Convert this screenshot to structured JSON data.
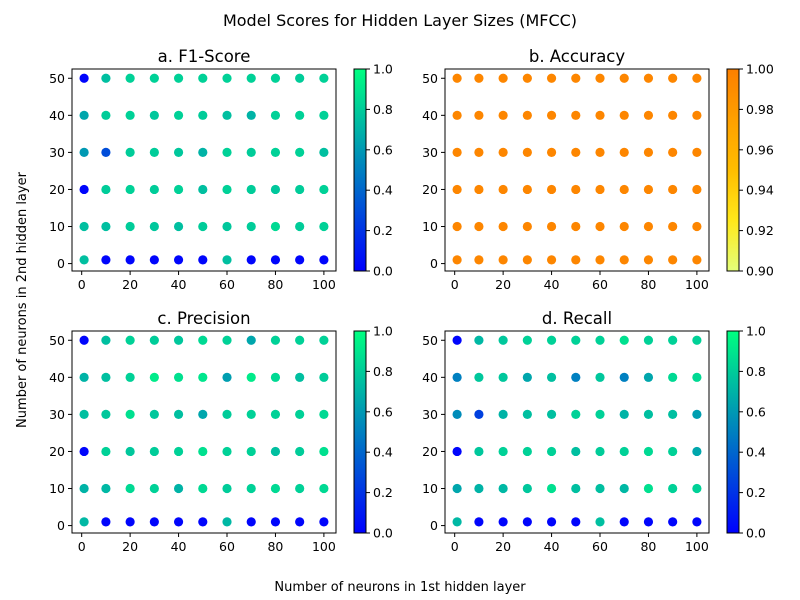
{
  "title": "Model Scores for Hidden Layer Sizes (MFCC)",
  "xlabel": "Number of neurons in 1st hidden layer",
  "ylabel": "Number of neurons in 2nd hidden layer",
  "chart_data": [
    {
      "type": "scatter",
      "title": "a. F1-Score",
      "colormap": "winter",
      "colormap_colors": [
        "#0000ff",
        "#00ff80"
      ],
      "clim": [
        0.0,
        1.0
      ],
      "colorbar_ticks": [
        0.0,
        0.2,
        0.4,
        0.6,
        0.8,
        1.0
      ],
      "x": [
        1,
        10,
        20,
        30,
        40,
        50,
        60,
        70,
        80,
        90,
        100
      ],
      "y": [
        1,
        10,
        20,
        30,
        40,
        50
      ],
      "xticks": [
        0,
        20,
        40,
        60,
        80,
        100
      ],
      "yticks": [
        0,
        10,
        20,
        30,
        40,
        50
      ],
      "xlim": [
        -4,
        105
      ],
      "ylim": [
        -2,
        52.5
      ],
      "grid": false,
      "values": [
        [
          0.75,
          0.02,
          0.02,
          0.02,
          0.02,
          0.02,
          0.75,
          0.02,
          0.02,
          0.02,
          0.02
        ],
        [
          0.75,
          0.75,
          0.8,
          0.78,
          0.75,
          0.8,
          0.78,
          0.8,
          0.85,
          0.8,
          0.82
        ],
        [
          0.02,
          0.8,
          0.82,
          0.8,
          0.82,
          0.75,
          0.82,
          0.8,
          0.78,
          0.8,
          0.82
        ],
        [
          0.6,
          0.3,
          0.8,
          0.8,
          0.78,
          0.7,
          0.82,
          0.8,
          0.82,
          0.82,
          0.75
        ],
        [
          0.65,
          0.8,
          0.82,
          0.78,
          0.82,
          0.8,
          0.75,
          0.7,
          0.82,
          0.82,
          0.82
        ],
        [
          0.02,
          0.75,
          0.82,
          0.82,
          0.82,
          0.82,
          0.82,
          0.82,
          0.82,
          0.8,
          0.82
        ]
      ]
    },
    {
      "type": "scatter",
      "title": "b. Accuracy",
      "colormap": "Wistia",
      "colormap_colors": [
        "#e4ff7a",
        "#ffe81a",
        "#ffbd00",
        "#ffa000",
        "#fc7f00"
      ],
      "clim": [
        0.9,
        1.0
      ],
      "colorbar_ticks": [
        0.9,
        0.92,
        0.94,
        0.96,
        0.98,
        1.0
      ],
      "x": [
        1,
        10,
        20,
        30,
        40,
        50,
        60,
        70,
        80,
        90,
        100
      ],
      "y": [
        1,
        10,
        20,
        30,
        40,
        50
      ],
      "xticks": [
        0,
        20,
        40,
        60,
        80,
        100
      ],
      "yticks": [
        0,
        10,
        20,
        30,
        40,
        50
      ],
      "xlim": [
        -4,
        105
      ],
      "ylim": [
        -2,
        52.5
      ],
      "grid": false,
      "values": [
        [
          0.995,
          0.995,
          0.995,
          0.995,
          0.995,
          0.995,
          0.995,
          0.995,
          0.995,
          0.995,
          0.995
        ],
        [
          0.995,
          0.995,
          0.995,
          0.995,
          0.995,
          0.995,
          0.995,
          0.995,
          0.995,
          0.995,
          0.995
        ],
        [
          0.995,
          0.995,
          0.995,
          0.995,
          0.995,
          0.995,
          0.995,
          0.995,
          0.995,
          0.995,
          0.995
        ],
        [
          0.995,
          0.995,
          0.995,
          0.995,
          0.995,
          0.995,
          0.995,
          0.995,
          0.995,
          0.995,
          0.995
        ],
        [
          0.995,
          0.995,
          0.995,
          0.995,
          0.995,
          0.995,
          0.995,
          0.995,
          0.995,
          0.995,
          0.995
        ],
        [
          0.995,
          0.995,
          0.995,
          0.995,
          0.995,
          0.995,
          0.995,
          0.995,
          0.995,
          0.995,
          0.995
        ]
      ]
    },
    {
      "type": "scatter",
      "title": "c. Precision",
      "colormap": "winter",
      "colormap_colors": [
        "#0000ff",
        "#00ff80"
      ],
      "clim": [
        0.0,
        1.0
      ],
      "colorbar_ticks": [
        0.0,
        0.2,
        0.4,
        0.6,
        0.8,
        1.0
      ],
      "x": [
        1,
        10,
        20,
        30,
        40,
        50,
        60,
        70,
        80,
        90,
        100
      ],
      "y": [
        1,
        10,
        20,
        30,
        40,
        50
      ],
      "xticks": [
        0,
        20,
        40,
        60,
        80,
        100
      ],
      "yticks": [
        0,
        10,
        20,
        30,
        40,
        50
      ],
      "xlim": [
        -4,
        105
      ],
      "ylim": [
        -2,
        52.5
      ],
      "grid": false,
      "values": [
        [
          0.72,
          0.02,
          0.02,
          0.02,
          0.02,
          0.02,
          0.72,
          0.02,
          0.02,
          0.02,
          0.02
        ],
        [
          0.7,
          0.72,
          0.85,
          0.82,
          0.7,
          0.85,
          0.8,
          0.82,
          0.85,
          0.82,
          0.85
        ],
        [
          0.02,
          0.82,
          0.78,
          0.8,
          0.82,
          0.88,
          0.82,
          0.82,
          0.75,
          0.8,
          0.88
        ],
        [
          0.75,
          0.78,
          0.88,
          0.78,
          0.75,
          0.65,
          0.8,
          0.82,
          0.82,
          0.82,
          0.85
        ],
        [
          0.7,
          0.75,
          0.82,
          0.92,
          0.88,
          0.9,
          0.62,
          0.92,
          0.85,
          0.75,
          0.8
        ],
        [
          0.02,
          0.75,
          0.82,
          0.8,
          0.78,
          0.85,
          0.82,
          0.65,
          0.82,
          0.82,
          0.82
        ]
      ]
    },
    {
      "type": "scatter",
      "title": "d. Recall",
      "colormap": "winter",
      "colormap_colors": [
        "#0000ff",
        "#00ff80"
      ],
      "clim": [
        0.0,
        1.0
      ],
      "colorbar_ticks": [
        0.0,
        0.2,
        0.4,
        0.6,
        0.8,
        1.0
      ],
      "x": [
        1,
        10,
        20,
        30,
        40,
        50,
        60,
        70,
        80,
        90,
        100
      ],
      "y": [
        1,
        10,
        20,
        30,
        40,
        50
      ],
      "xticks": [
        0,
        20,
        40,
        60,
        80,
        100
      ],
      "yticks": [
        0,
        10,
        20,
        30,
        40,
        50
      ],
      "xlim": [
        -4,
        105
      ],
      "ylim": [
        -2,
        52.5
      ],
      "grid": false,
      "values": [
        [
          0.72,
          0.02,
          0.02,
          0.02,
          0.02,
          0.02,
          0.75,
          0.02,
          0.02,
          0.02,
          0.02
        ],
        [
          0.65,
          0.7,
          0.72,
          0.78,
          0.88,
          0.75,
          0.75,
          0.72,
          0.88,
          0.82,
          0.82
        ],
        [
          0.02,
          0.78,
          0.82,
          0.82,
          0.82,
          0.75,
          0.8,
          0.82,
          0.85,
          0.82,
          0.65
        ],
        [
          0.55,
          0.25,
          0.7,
          0.75,
          0.75,
          0.82,
          0.82,
          0.7,
          0.75,
          0.75,
          0.62
        ],
        [
          0.5,
          0.78,
          0.78,
          0.65,
          0.75,
          0.5,
          0.78,
          0.5,
          0.65,
          0.85,
          0.85
        ],
        [
          0.02,
          0.72,
          0.78,
          0.82,
          0.82,
          0.82,
          0.82,
          0.88,
          0.82,
          0.82,
          0.82
        ]
      ]
    }
  ]
}
